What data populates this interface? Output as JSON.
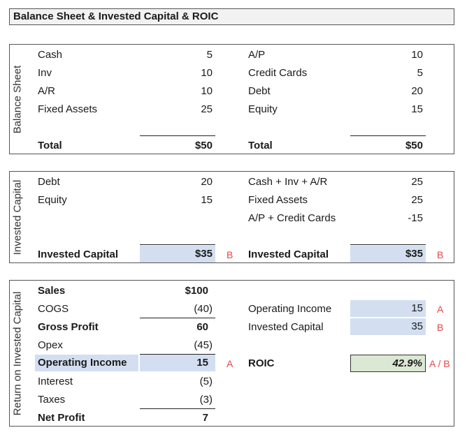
{
  "title": "Balance Sheet & Invested Capital & ROIC",
  "balance_sheet": {
    "side_label": "Balance Sheet",
    "assets": [
      {
        "label": "Cash",
        "value": "5"
      },
      {
        "label": "Inv",
        "value": "10"
      },
      {
        "label": "A/R",
        "value": "10"
      },
      {
        "label": "Fixed Assets",
        "value": "25"
      }
    ],
    "liabilities": [
      {
        "label": "A/P",
        "value": "10"
      },
      {
        "label": "Credit Cards",
        "value": "5"
      },
      {
        "label": "Debt",
        "value": "20"
      },
      {
        "label": "Equity",
        "value": "15"
      }
    ],
    "total_label": "Total",
    "assets_total": "$50",
    "liabilities_total": "$50"
  },
  "invested_capital": {
    "side_label": "Invested Capital",
    "financing": [
      {
        "label": "Debt",
        "value": "20"
      },
      {
        "label": "Equity",
        "value": "15"
      }
    ],
    "operating": [
      {
        "label": "Cash + Inv + A/R",
        "value": "25"
      },
      {
        "label": "Fixed Assets",
        "value": "25"
      },
      {
        "label": "A/P + Credit Cards",
        "value": "-15"
      }
    ],
    "total_label": "Invested Capital",
    "left_total": "$35",
    "right_total": "$35",
    "marker": "B"
  },
  "roic": {
    "side_label": "Return on Invested Capital",
    "income_rows": [
      {
        "label": "Sales",
        "value": "$100",
        "bold": true
      },
      {
        "label": "COGS",
        "value": "(40)",
        "bold": false
      },
      {
        "label": "Gross Profit",
        "value": "60",
        "bold": true
      },
      {
        "label": "Opex",
        "value": "(45)",
        "bold": false
      },
      {
        "label": "Operating Income",
        "value": "15",
        "bold": true
      },
      {
        "label": "Interest",
        "value": "(5)",
        "bold": false
      },
      {
        "label": "Taxes",
        "value": "(3)",
        "bold": false
      },
      {
        "label": "Net Profit",
        "value": "7",
        "bold": true
      }
    ],
    "op_income_marker": "A",
    "calc": [
      {
        "label": "Operating Income",
        "value": "15",
        "marker": "A"
      },
      {
        "label": "Invested Capital",
        "value": "35",
        "marker": "B"
      }
    ],
    "roic_label": "ROIC",
    "roic_value": "42.9%",
    "roic_marker": "A / B"
  }
}
